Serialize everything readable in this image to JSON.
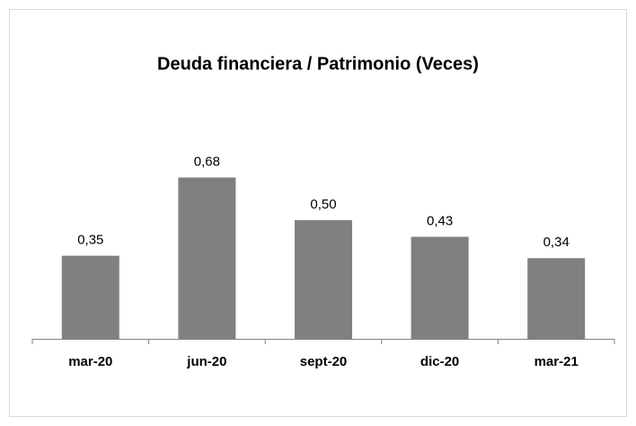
{
  "chart_data": {
    "type": "bar",
    "title": "Deuda financiera / Patrimonio (Veces)",
    "categories": [
      "mar-20",
      "jun-20",
      "sept-20",
      "dic-20",
      "mar-21"
    ],
    "values": [
      0.35,
      0.68,
      0.5,
      0.43,
      0.34
    ],
    "value_labels": [
      "0,35",
      "0,68",
      "0,50",
      "0,43",
      "0,34"
    ],
    "color": "#808080"
  }
}
